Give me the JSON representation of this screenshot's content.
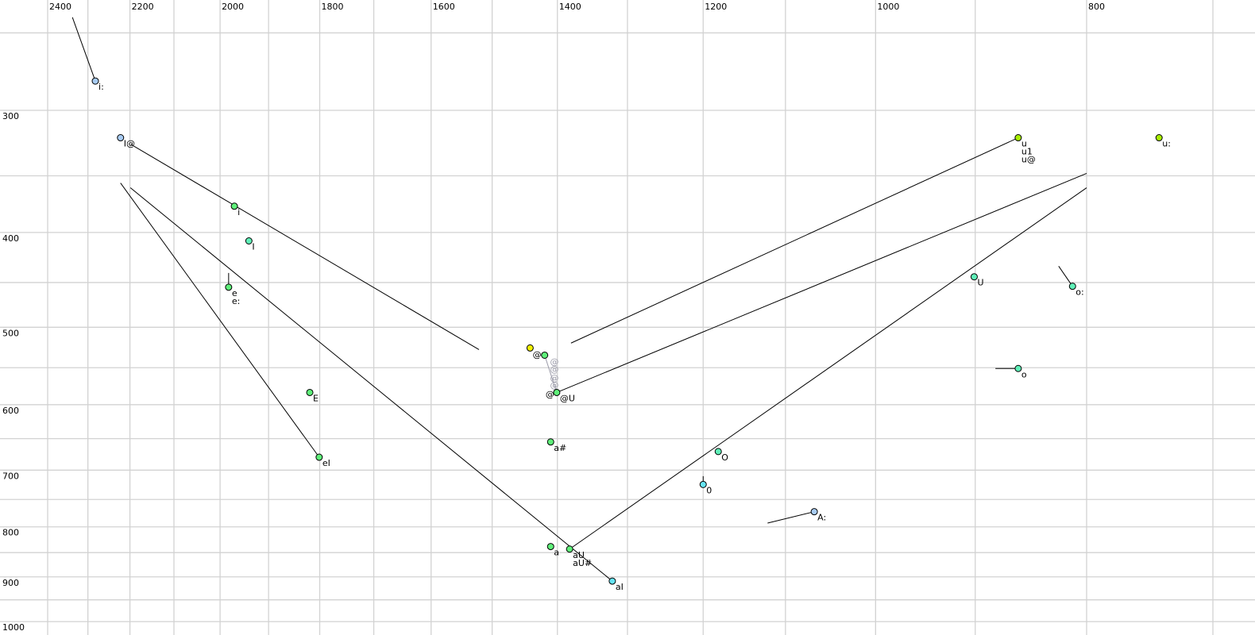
{
  "chart_data": {
    "type": "scatter",
    "title": "",
    "xlabel": "",
    "ylabel": "",
    "x_scale": "log",
    "y_scale": "log",
    "x_reversed": true,
    "xlim": [
      2400,
      700
    ],
    "ylim": [
      250,
      1000
    ],
    "grid": true,
    "x_ticks": [
      2400,
      2200,
      2000,
      1800,
      1600,
      1400,
      1200,
      1000,
      800
    ],
    "y_ticks": [
      300,
      400,
      500,
      600,
      700,
      800,
      900,
      1000
    ],
    "x_grid": [
      2400,
      2300,
      2200,
      2100,
      2000,
      1900,
      1800,
      1700,
      1600,
      1500,
      1400,
      1300,
      1200,
      1100,
      1000,
      900,
      800,
      700
    ],
    "y_grid": [
      250,
      300,
      350,
      400,
      450,
      500,
      550,
      600,
      650,
      700,
      750,
      800,
      850,
      900,
      950,
      1000
    ],
    "colors": {
      "blue": "#a8ccf4",
      "green": "#5ff07a",
      "aqua": "#5ff0b8",
      "cyan": "#66e4f4",
      "yellow": "#f0f000",
      "lime": "#a8f000",
      "gray_label": "#9a9aa8"
    },
    "points": [
      {
        "labels": [
          "i:"
        ],
        "f2": 2282,
        "f1": 280,
        "color": "blue",
        "trail": [
          2338,
          241
        ]
      },
      {
        "labels": [
          "I@"
        ],
        "f2": 2222,
        "f1": 320,
        "color": "blue"
      },
      {
        "labels": [
          "i"
        ],
        "f2": 1970,
        "f1": 376,
        "color": "green"
      },
      {
        "labels": [
          "I"
        ],
        "f2": 1940,
        "f1": 408,
        "color": "aqua"
      },
      {
        "labels": [
          "e",
          "e:"
        ],
        "f2": 1982,
        "f1": 455,
        "color": "green",
        "trail": [
          1982,
          440
        ]
      },
      {
        "labels": [
          "E"
        ],
        "f2": 1819,
        "f1": 583,
        "color": "green"
      },
      {
        "labels": [
          "eI"
        ],
        "f2": 1801,
        "f1": 679,
        "color": "green"
      },
      {
        "labels": [
          "@"
        ],
        "f2": 1441,
        "f1": 525,
        "color": "yellow",
        "side": "none"
      },
      {
        "labels": [
          "@"
        ],
        "f2": 1419,
        "f1": 534,
        "color": "green",
        "side": "left"
      },
      {
        "labels": [
          "@",
          "@U"
        ],
        "f2": 1401,
        "f1": 583,
        "color": "green",
        "side": "both"
      },
      {
        "labels": [
          "a#"
        ],
        "f2": 1410,
        "f1": 655,
        "color": "green"
      },
      {
        "labels": [
          "a"
        ],
        "f2": 1410,
        "f1": 838,
        "color": "green"
      },
      {
        "labels": [
          "aU",
          "aU#"
        ],
        "f2": 1382,
        "f1": 843,
        "color": "green"
      },
      {
        "labels": [
          "aI"
        ],
        "f2": 1321,
        "f1": 909,
        "color": "cyan"
      },
      {
        "labels": [
          "O"
        ],
        "f2": 1181,
        "f1": 670,
        "color": "aqua"
      },
      {
        "labels": [
          "0"
        ],
        "f2": 1200,
        "f1": 724,
        "color": "cyan",
        "trail": [
          1200,
          710
        ]
      },
      {
        "labels": [
          "A:"
        ],
        "f2": 1067,
        "f1": 772,
        "color": "blue",
        "trail": [
          1121,
          793
        ]
      },
      {
        "labels": [
          "U"
        ],
        "f2": 901,
        "f1": 444,
        "color": "aqua"
      },
      {
        "labels": [
          "o:"
        ],
        "f2": 812,
        "f1": 454,
        "color": "aqua",
        "trail": [
          824,
          433
        ]
      },
      {
        "labels": [
          "o"
        ],
        "f2": 860,
        "f1": 551,
        "color": "aqua",
        "trail": [
          881,
          551
        ]
      },
      {
        "labels": [
          "u",
          "u1",
          "u@"
        ],
        "f2": 860,
        "f1": 320,
        "color": "lime"
      },
      {
        "labels": [
          "u:"
        ],
        "f2": 741,
        "f1": 320,
        "color": "lime"
      }
    ],
    "gray_labels": [
      {
        "text": "@",
        "f2": 1405,
        "f1": 542
      },
      {
        "text": "@",
        "f2": 1405,
        "f1": 552
      },
      {
        "text": "@",
        "f2": 1405,
        "f1": 563
      },
      {
        "text": "@",
        "f2": 1405,
        "f1": 573
      }
    ],
    "trajectories": [
      {
        "from": [
          2198,
          325
        ],
        "to": [
          1521,
          527
        ]
      },
      {
        "from": [
          2222,
          356
        ],
        "to": [
          1801,
          679
        ]
      },
      {
        "from": [
          2199,
          360
        ],
        "to": [
          1321,
          909
        ]
      },
      {
        "from": [
          1419,
          534
        ],
        "to": [
          1401,
          583
        ],
        "color": "gray_label"
      },
      {
        "from": [
          1401,
          583
        ],
        "to": [
          800,
          348
        ]
      },
      {
        "from": [
          1380,
          519
        ],
        "to": [
          860,
          320
        ]
      },
      {
        "from": [
          1382,
          843
        ],
        "to": [
          800,
          360
        ]
      }
    ]
  }
}
